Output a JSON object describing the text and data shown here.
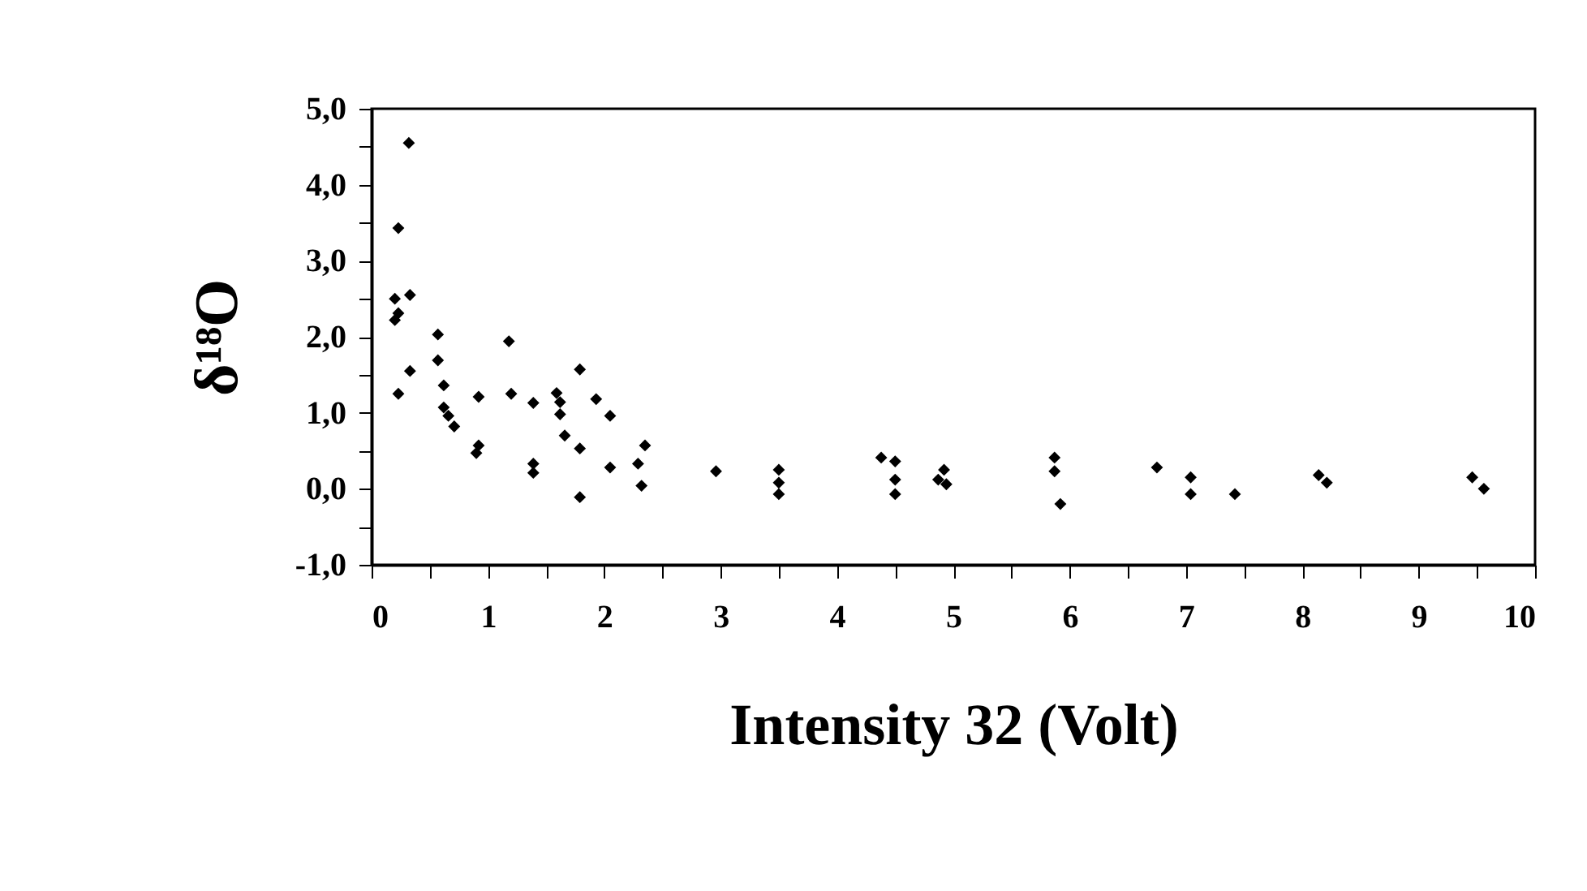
{
  "chart_data": {
    "type": "scatter",
    "xlabel": "Intensity 32 (Volt)",
    "ylabel": "δ¹⁸O",
    "x": [
      0.32,
      0.23,
      0.2,
      0.33,
      0.23,
      0.2,
      0.33,
      0.23,
      0.57,
      0.57,
      0.62,
      0.62,
      0.66,
      0.71,
      0.92,
      0.92,
      0.9,
      1.18,
      1.2,
      1.39,
      1.39,
      1.39,
      1.59,
      1.62,
      1.62,
      1.66,
      1.79,
      1.79,
      1.79,
      1.93,
      2.05,
      2.05,
      2.35,
      2.29,
      2.32,
      2.96,
      3.5,
      3.5,
      3.5,
      4.38,
      4.5,
      4.5,
      4.5,
      4.92,
      4.87,
      4.94,
      5.87,
      5.87,
      5.92,
      6.75,
      7.04,
      7.04,
      7.42,
      8.14,
      8.21,
      9.46,
      9.56
    ],
    "values": [
      4.55,
      3.43,
      2.5,
      2.55,
      2.31,
      2.22,
      1.55,
      1.25,
      2.03,
      1.69,
      1.36,
      1.07,
      0.96,
      0.82,
      1.21,
      0.57,
      0.47,
      1.94,
      1.25,
      1.13,
      0.33,
      0.21,
      1.26,
      1.14,
      0.98,
      0.7,
      1.57,
      0.53,
      -0.11,
      1.18,
      0.96,
      0.28,
      0.57,
      0.33,
      0.04,
      0.23,
      0.25,
      0.08,
      -0.07,
      0.41,
      0.36,
      0.12,
      -0.07,
      0.25,
      0.12,
      0.06,
      0.41,
      0.23,
      -0.2,
      0.28,
      0.15,
      -0.07,
      -0.07,
      0.18,
      0.08,
      0.15,
      0.0
    ],
    "color": "#000000",
    "marker": "diamond",
    "grid": false,
    "xlim": [
      0,
      10
    ],
    "ylim": [
      -1,
      5
    ],
    "xticks": [
      0,
      {
        "value": 0.5,
        "label": null
      },
      1,
      {
        "value": 1.5,
        "label": null
      },
      2,
      {
        "value": 2.5,
        "label": null
      },
      3,
      {
        "value": 3.5,
        "label": null
      },
      4,
      {
        "value": 4.5,
        "label": null
      },
      5,
      {
        "value": 5.5,
        "label": null
      },
      6,
      {
        "value": 6.5,
        "label": null
      },
      7,
      {
        "value": 7.5,
        "label": null
      },
      8,
      {
        "value": 8.5,
        "label": null
      },
      9,
      {
        "value": 9.5,
        "label": null
      },
      10
    ],
    "yticks": [
      {
        "value": -1,
        "label": "-1,0"
      },
      {
        "value": -0.5,
        "label": null
      },
      {
        "value": 0,
        "label": "0,0"
      },
      {
        "value": 0.5,
        "label": null
      },
      {
        "value": 1,
        "label": "1,0"
      },
      {
        "value": 1.5,
        "label": null
      },
      {
        "value": 2,
        "label": "2,0"
      },
      {
        "value": 2.5,
        "label": null
      },
      {
        "value": 3,
        "label": "3,0"
      },
      {
        "value": 3.5,
        "label": null
      },
      {
        "value": 4,
        "label": "4,0"
      },
      {
        "value": 4.5,
        "label": null
      },
      {
        "value": 5,
        "label": "5,0"
      }
    ]
  }
}
